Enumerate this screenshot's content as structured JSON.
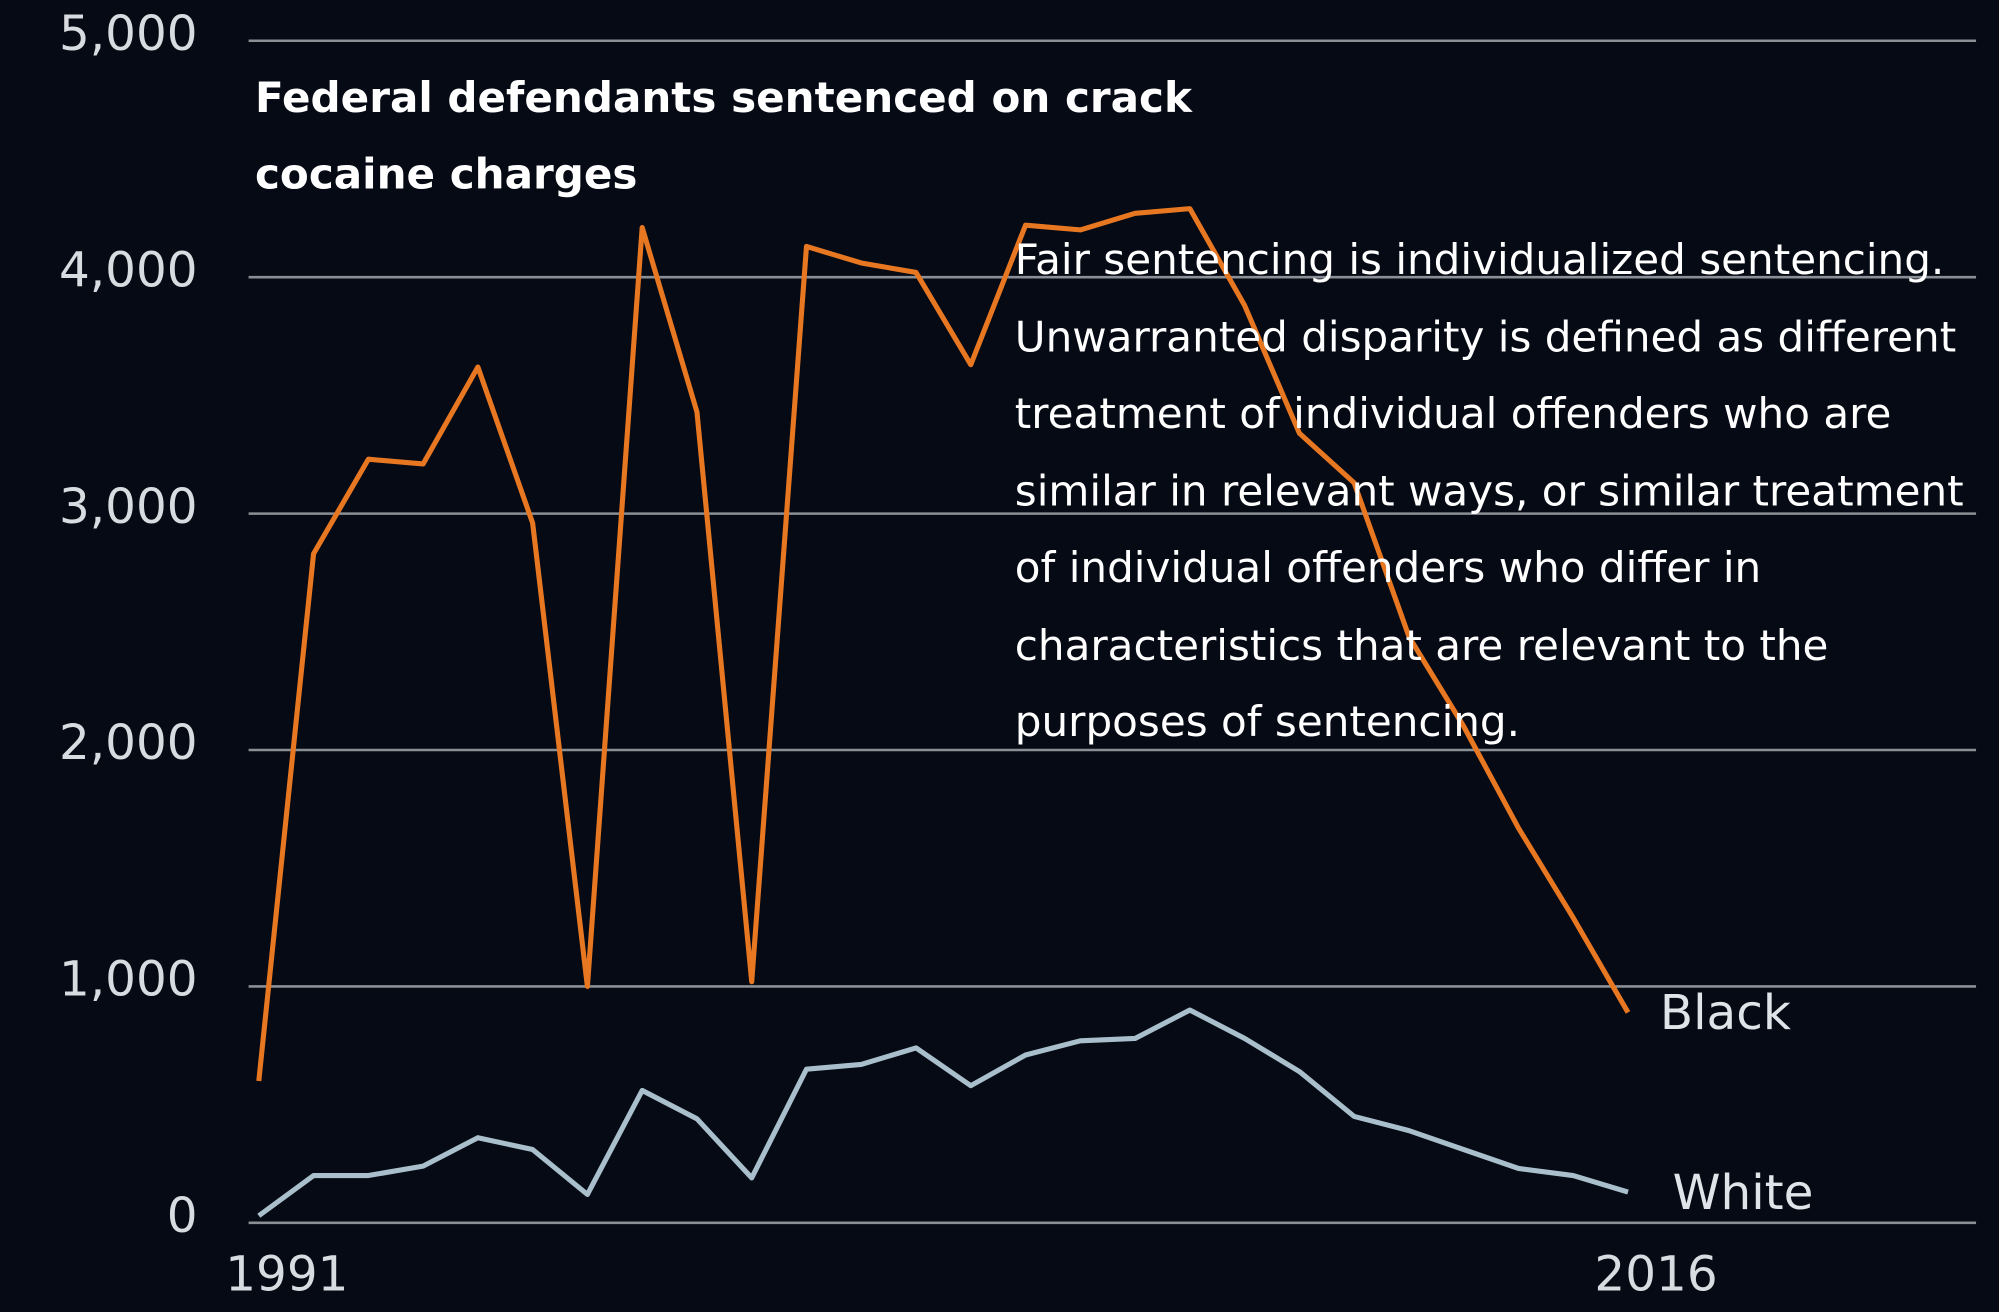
{
  "chart_data": {
    "type": "line",
    "title": "Federal defendants sentenced on crack cocaine charges",
    "annotation": "Fair sentencing is individualized sentencing. Unwarranted disparity is defined as different treatment of individual offenders who are similar in relevant ways, or similar treatment of individual offenders who differ in characteristics that are relevant to the purposes of sentencing.",
    "x": [
      1991,
      1992,
      1993,
      1994,
      1995,
      1996,
      1997,
      1998,
      1999,
      2000,
      2001,
      2002,
      2003,
      2004,
      2005,
      2006,
      2007,
      2008,
      2009,
      2010,
      2011,
      2012,
      2013,
      2014,
      2015,
      2016
    ],
    "series": [
      {
        "name": "Black",
        "color": "#e87722",
        "values": [
          600,
          2830,
          3230,
          3210,
          3620,
          2960,
          1000,
          4210,
          3430,
          1020,
          4130,
          4060,
          4020,
          3630,
          4220,
          4200,
          4270,
          4290,
          3880,
          3340,
          3130,
          2480,
          2100,
          1670,
          1290,
          890
        ]
      },
      {
        "name": "White",
        "color": "#a9c0cc",
        "values": [
          30,
          200,
          200,
          240,
          360,
          310,
          120,
          560,
          440,
          190,
          650,
          670,
          740,
          580,
          710,
          770,
          780,
          900,
          780,
          640,
          450,
          390,
          310,
          230,
          200,
          130
        ]
      }
    ],
    "xlim": [
      1991,
      2016
    ],
    "xticks": [
      1991,
      2016
    ],
    "ylim": [
      0,
      5000
    ],
    "yticks": [
      0,
      {
        "value": 1000,
        "label": "1,000"
      },
      {
        "value": 2000,
        "label": "2,000"
      },
      {
        "value": 3000,
        "label": "3,000"
      },
      {
        "value": 4000,
        "label": "4,000"
      },
      {
        "value": 5000,
        "label": "5,000"
      }
    ],
    "grid": true
  }
}
